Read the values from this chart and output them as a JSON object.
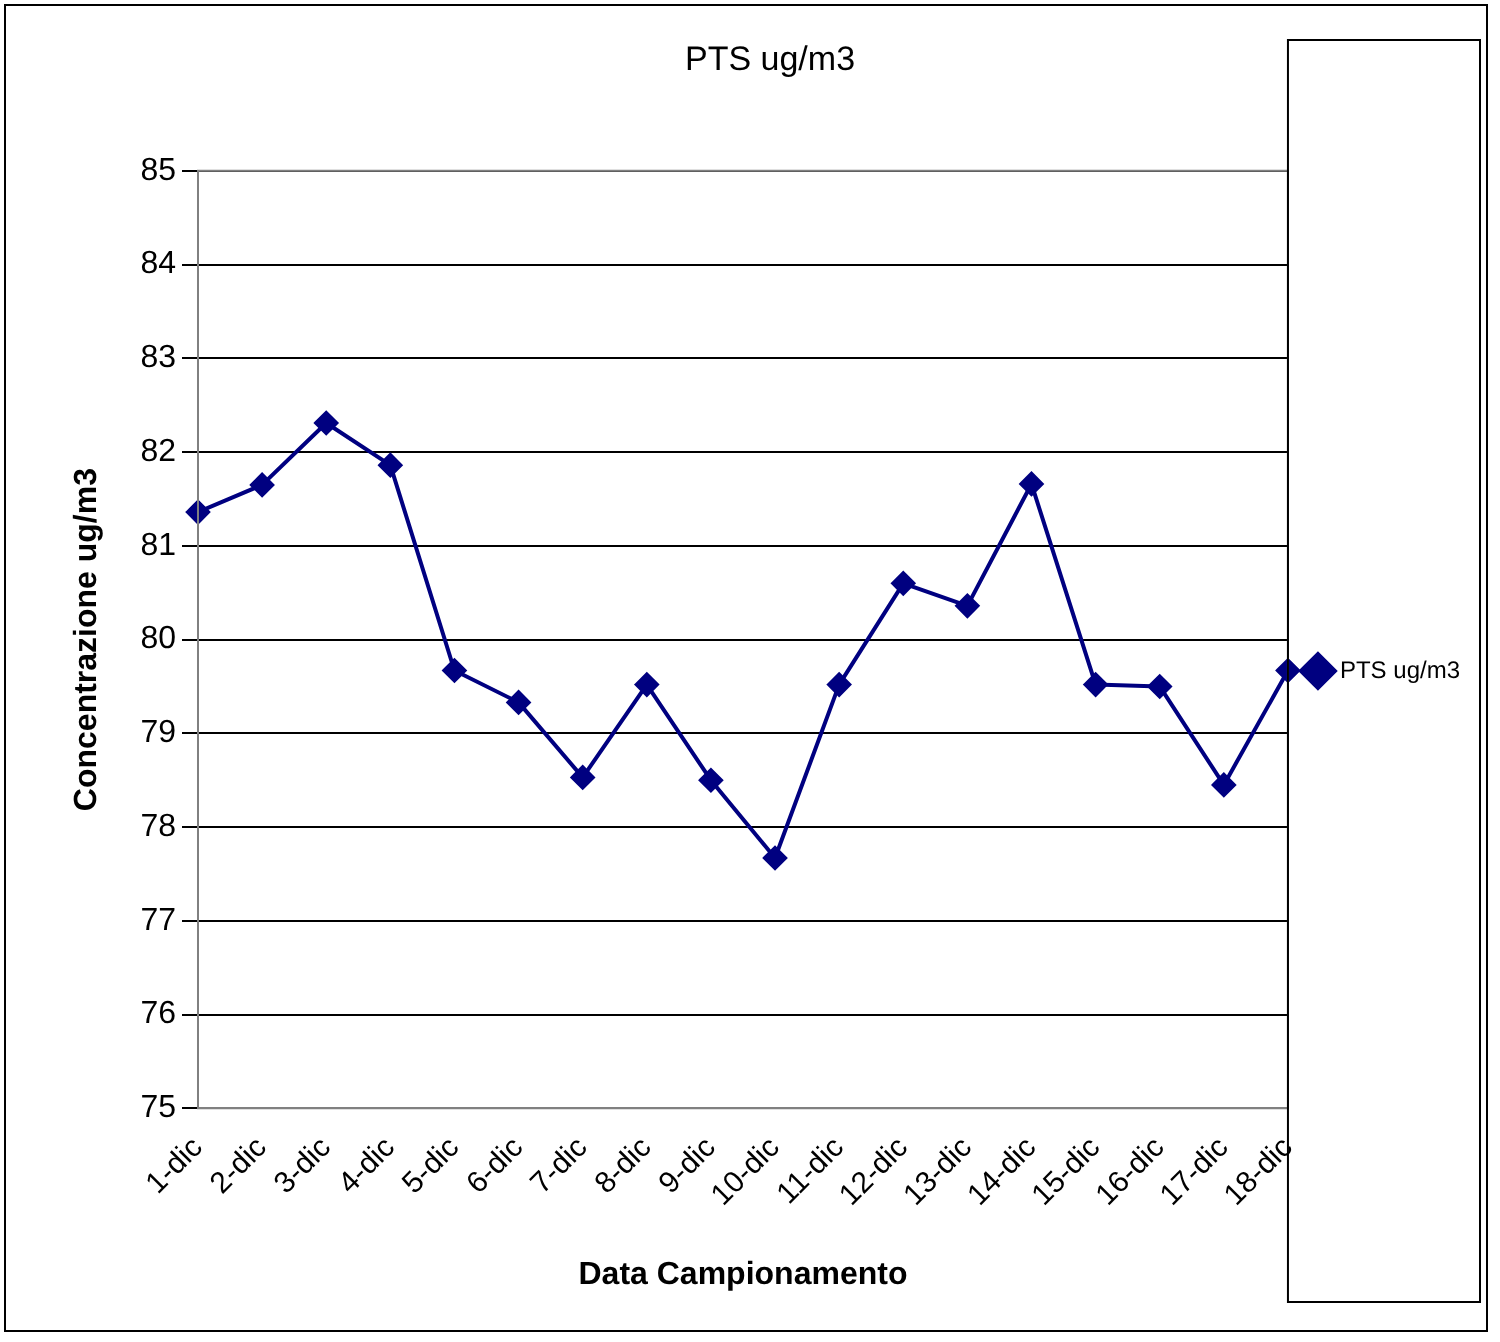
{
  "chart_data": {
    "type": "line",
    "title": "PTS ug/m3",
    "xlabel": "Data Campionamento",
    "ylabel": "Concentrazione ug/m3",
    "categories": [
      "1-dic",
      "2-dic",
      "3-dic",
      "4-dic",
      "5-dic",
      "6-dic",
      "7-dic",
      "8-dic",
      "9-dic",
      "10-dic",
      "11-dic",
      "12-dic",
      "13-dic",
      "14-dic",
      "15-dic",
      "16-dic",
      "17-dic",
      "18-dic"
    ],
    "series": [
      {
        "name": "PTS ug/m3",
        "color": "#000080",
        "values": [
          81.36,
          81.65,
          82.31,
          81.86,
          79.67,
          79.33,
          78.53,
          79.52,
          78.5,
          77.67,
          79.52,
          80.6,
          80.36,
          81.66,
          79.52,
          79.5,
          78.45,
          79.67
        ]
      }
    ],
    "ylim": [
      75,
      85
    ],
    "yticks": [
      75,
      76,
      77,
      78,
      79,
      80,
      81,
      82,
      83,
      84,
      85
    ],
    "grid": "y",
    "legend": "right",
    "marker": "diamond",
    "line_style": "solid"
  }
}
